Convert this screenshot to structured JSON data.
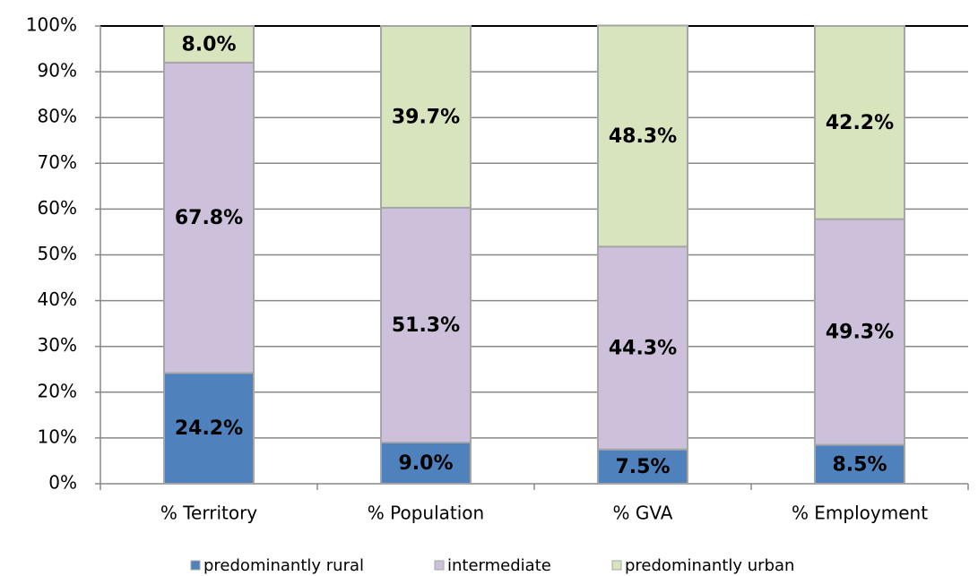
{
  "chart_data": {
    "type": "stacked_bar",
    "categories": [
      "% Territory",
      "% Population",
      "% GVA",
      "% Employment"
    ],
    "series": [
      {
        "name": "predominantly rural",
        "color": "#4f81bd",
        "values": [
          24.2,
          9.0,
          7.5,
          8.5
        ],
        "value_labels": [
          "24.2%",
          "9.0%",
          "7.5%",
          "8.5%"
        ]
      },
      {
        "name": "intermediate",
        "color": "#ccc0da",
        "values": [
          67.8,
          51.3,
          44.3,
          49.3
        ],
        "value_labels": [
          "67.8%",
          "51.3%",
          "44.3%",
          "49.3%"
        ]
      },
      {
        "name": "predominantly urban",
        "color": "#d7e4bd",
        "values": [
          8.0,
          39.7,
          48.3,
          42.2
        ],
        "value_labels": [
          "8.0%",
          "39.7%",
          "48.3%",
          "42.2%"
        ]
      }
    ],
    "ylim": [
      0,
      100
    ],
    "yticks": [
      {
        "value": 0,
        "label": "0%"
      },
      {
        "value": 10,
        "label": "10%"
      },
      {
        "value": 20,
        "label": "20%"
      },
      {
        "value": 30,
        "label": "30%"
      },
      {
        "value": 40,
        "label": "40%"
      },
      {
        "value": 50,
        "label": "50%"
      },
      {
        "value": 60,
        "label": "60%"
      },
      {
        "value": 70,
        "label": "70%"
      },
      {
        "value": 80,
        "label": "80%"
      },
      {
        "value": 90,
        "label": "90%"
      },
      {
        "value": 100,
        "label": "100%"
      }
    ],
    "grid": true,
    "legend": "bottom"
  }
}
